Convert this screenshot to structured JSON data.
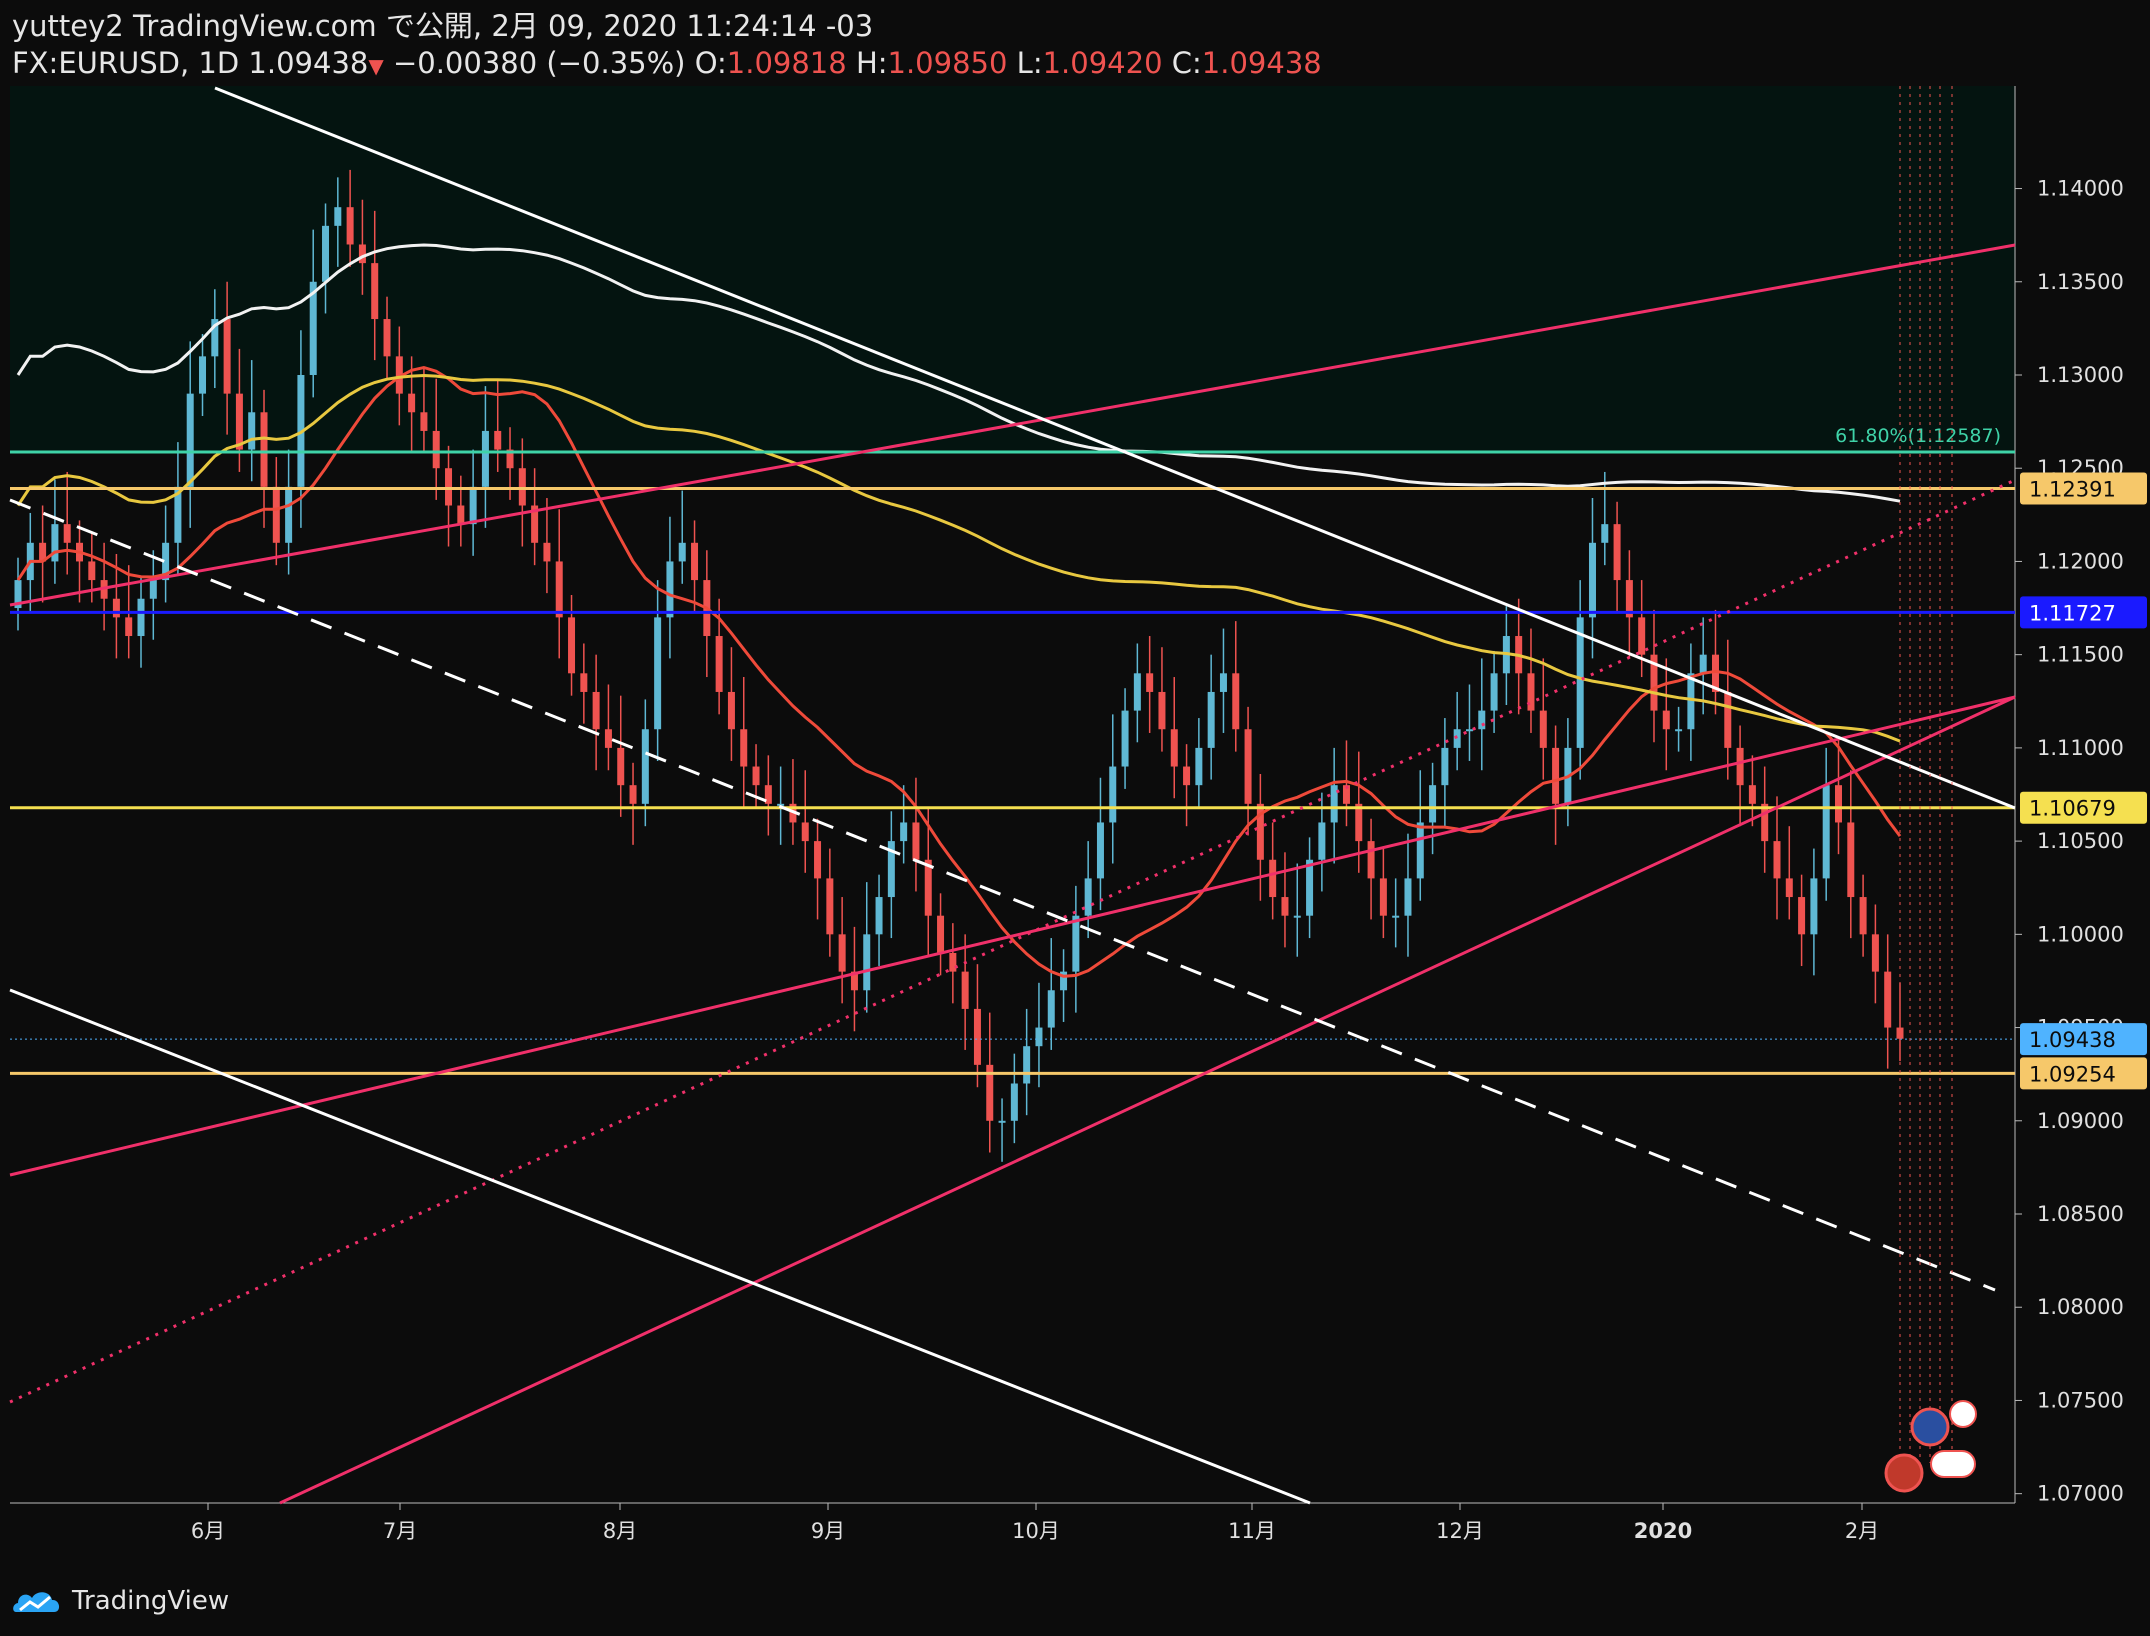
{
  "header": {
    "line1": "yuttey2 TradingView.com で公開, 2月 09, 2020 11:24:14 -03",
    "symbol": "FX:EURUSD, 1D",
    "last": "1.09438",
    "down_arrow": "▼",
    "change": "−0.00380 (−0.35%)",
    "o_label": "O:",
    "o_value": "1.09818",
    "h_label": "H:",
    "h_value": "1.09850",
    "l_label": "L:",
    "l_value": "1.09420",
    "c_label": "C:",
    "c_value": "1.09438"
  },
  "footer": {
    "brand": "TradingView"
  },
  "colors": {
    "background": "#0c0c0c",
    "up": "#5fb8d4",
    "down": "#ef5350",
    "trend_red": "#f0306a",
    "trend_white": "#ffffff",
    "yellow_level": "#f5e050",
    "orange_level": "#f6c86a",
    "blue_level": "#1a1aff",
    "fib": "#3fd3a8",
    "ma_red": "#ef4a3a",
    "ma_yellow": "#e8c840",
    "ma_white": "#f2f2f2"
  },
  "chart_data": {
    "type": "candlestick",
    "title": "",
    "xlabel": "",
    "ylabel": "",
    "ylim": [
      1.0695,
      1.1455
    ],
    "grid": false,
    "x_ticks": [
      "6月",
      "7月",
      "8月",
      "9月",
      "10月",
      "11月",
      "12月",
      "2020",
      "2月"
    ],
    "y_ticks": [
      "1.14000",
      "1.13500",
      "1.13000",
      "1.12500",
      "1.12000",
      "1.11500",
      "1.11000",
      "1.10500",
      "1.10000",
      "1.09500",
      "1.09000",
      "1.08500",
      "1.08000",
      "1.07500",
      "1.07000"
    ],
    "price_labels": [
      {
        "text": "1.12391",
        "value": 1.12391,
        "color": "#f6c86a"
      },
      {
        "text": "1.11727",
        "value": 1.11727,
        "color": "#1a1aff"
      },
      {
        "text": "1.10679",
        "value": 1.10679,
        "color": "#f5e050"
      },
      {
        "text": "1.09438",
        "value": 1.09438,
        "color": "#4fb3ff"
      },
      {
        "text": "1.09254",
        "value": 1.09254,
        "color": "#f6c86a"
      }
    ],
    "fib_label": "61.80%(1.12587)",
    "fib_value": 1.12587,
    "candles_close_approx": [
      1.119,
      1.121,
      1.12,
      1.122,
      1.121,
      1.12,
      1.119,
      1.118,
      1.117,
      1.116,
      1.118,
      1.119,
      1.121,
      1.124,
      1.129,
      1.131,
      1.133,
      1.129,
      1.126,
      1.128,
      1.124,
      1.121,
      1.124,
      1.13,
      1.135,
      1.138,
      1.139,
      1.137,
      1.136,
      1.133,
      1.131,
      1.129,
      1.128,
      1.127,
      1.125,
      1.123,
      1.122,
      1.124,
      1.127,
      1.126,
      1.125,
      1.123,
      1.121,
      1.12,
      1.117,
      1.114,
      1.113,
      1.111,
      1.11,
      1.108,
      1.107,
      1.111,
      1.117,
      1.12,
      1.121,
      1.119,
      1.116,
      1.113,
      1.111,
      1.109,
      1.108,
      1.107,
      1.107,
      1.106,
      1.105,
      1.103,
      1.1,
      1.098,
      1.097,
      1.1,
      1.102,
      1.105,
      1.106,
      1.104,
      1.101,
      1.099,
      1.098,
      1.096,
      1.093,
      1.09,
      1.09,
      1.092,
      1.094,
      1.095,
      1.097,
      1.098,
      1.101,
      1.103,
      1.106,
      1.109,
      1.112,
      1.114,
      1.113,
      1.111,
      1.109,
      1.108,
      1.11,
      1.113,
      1.114,
      1.111,
      1.107,
      1.104,
      1.102,
      1.101,
      1.101,
      1.104,
      1.106,
      1.108,
      1.107,
      1.105,
      1.103,
      1.101,
      1.101,
      1.103,
      1.106,
      1.108,
      1.11,
      1.111,
      1.111,
      1.112,
      1.114,
      1.116,
      1.114,
      1.112,
      1.11,
      1.107,
      1.11,
      1.117,
      1.121,
      1.122,
      1.119,
      1.117,
      1.115,
      1.112,
      1.111,
      1.111,
      1.114,
      1.115,
      1.113,
      1.11,
      1.108,
      1.107,
      1.105,
      1.103,
      1.102,
      1.1,
      1.103,
      1.108,
      1.106,
      1.102,
      1.1,
      1.098,
      1.095,
      1.0944
    ],
    "moving_averages": [
      {
        "name": "",
        "color": "#ef4a3a",
        "period": 20
      },
      {
        "name": "",
        "color": "#e8c840",
        "period": 100
      },
      {
        "name": "",
        "color": "#f2f2f2",
        "period": 200
      }
    ]
  }
}
